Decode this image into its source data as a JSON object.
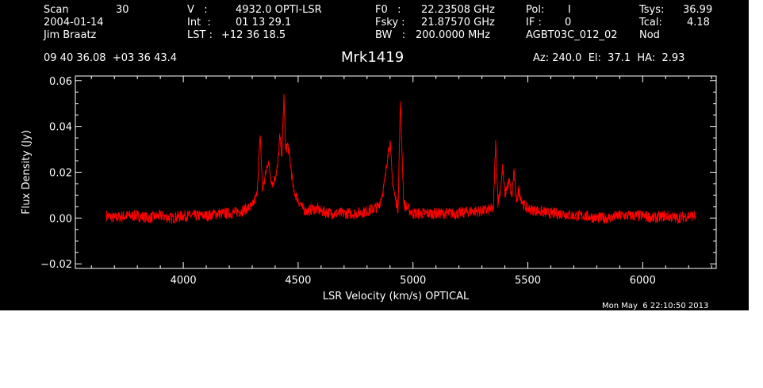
{
  "header": {
    "scan_label": "Scan",
    "scan_value": "30",
    "date": "2004-01-14",
    "observer": "Jim Braatz",
    "v_label": "V   :",
    "v_value": "4932.0 OPTI-LSR",
    "int_label": "Int  :",
    "int_value": "01 13 29.1",
    "lst_label": "LST :",
    "lst_value": "+12 36 18.5",
    "f0_label": "F0   :",
    "f0_value": "22.23508 GHz",
    "fsky_label": "Fsky :",
    "fsky_value": "21.87570 GHz",
    "bw_label": "BW   :",
    "bw_value": "200.0000 MHz",
    "pol_label": "Pol:",
    "pol_value": "I",
    "if_label": "IF :",
    "if_value": "0",
    "project": "AGBT03C_012_02",
    "tsys_label": "Tsys:",
    "tsys_value": "36.99",
    "tcal_label": "Tcal:",
    "tcal_value": "4.18",
    "mode": "Nod",
    "coords": "09 40 36.08  +03 36 43.4",
    "source": "Mrk1419",
    "pointing": "Az: 240.0  El:  37.1  HA:  2.93"
  },
  "timestamp": "Mon May  6 22:10:50 2013",
  "colors": {
    "background": "#000000",
    "axes": "#ffffff",
    "trace": "#ff0000",
    "page": "#ffffff"
  },
  "chart_data": {
    "type": "line",
    "title": "Mrk1419",
    "xlabel": "LSR Velocity (km/s) OPTICAL",
    "ylabel": "Flux Density (Jy)",
    "xlim": [
      3530,
      6320
    ],
    "ylim": [
      -0.022,
      0.062
    ],
    "x_ticks": [
      4000,
      4500,
      5000,
      5500,
      6000
    ],
    "x_tick_labels": [
      "4000",
      "4500",
      "5000",
      "5500",
      "6000"
    ],
    "y_ticks": [
      -0.02,
      0.0,
      0.02,
      0.04,
      0.06
    ],
    "y_tick_labels": [
      "−0.02",
      "0.00",
      "0.02",
      "0.04",
      "0.06"
    ],
    "grid": false,
    "series": [
      {
        "x": [
          3665,
          3700,
          3750,
          3800,
          3850,
          3900,
          3950,
          4000,
          4050,
          4100,
          4150,
          4200,
          4250,
          4300,
          4320,
          4335,
          4345,
          4360,
          4370,
          4380,
          4390,
          4400,
          4410,
          4420,
          4430,
          4438,
          4445,
          4455,
          4465,
          4480,
          4500,
          4520,
          4540,
          4560,
          4580,
          4600,
          4650,
          4700,
          4750,
          4800,
          4850,
          4870,
          4880,
          4890,
          4900,
          4910,
          4920,
          4935,
          4945,
          4960,
          5000,
          5050,
          5100,
          5150,
          5200,
          5250,
          5300,
          5350,
          5360,
          5370,
          5380,
          5390,
          5400,
          5410,
          5420,
          5430,
          5440,
          5450,
          5460,
          5480,
          5500,
          5550,
          5600,
          5650,
          5700,
          5750,
          5800,
          5850,
          5900,
          5950,
          6000,
          6050,
          6100,
          6150,
          6200,
          6230
        ],
        "y": [
          0.001,
          0.0,
          0.001,
          0.001,
          0.0,
          0.001,
          0.0,
          0.001,
          0.001,
          0.001,
          0.002,
          0.002,
          0.003,
          0.005,
          0.01,
          0.036,
          0.012,
          0.02,
          0.025,
          0.018,
          0.015,
          0.018,
          0.022,
          0.035,
          0.028,
          0.054,
          0.03,
          0.032,
          0.025,
          0.012,
          0.008,
          0.004,
          0.003,
          0.004,
          0.004,
          0.003,
          0.002,
          0.002,
          0.002,
          0.003,
          0.005,
          0.012,
          0.018,
          0.028,
          0.033,
          0.017,
          0.01,
          0.004,
          0.051,
          0.006,
          0.002,
          0.002,
          0.002,
          0.002,
          0.002,
          0.003,
          0.003,
          0.004,
          0.033,
          0.007,
          0.012,
          0.022,
          0.01,
          0.014,
          0.016,
          0.009,
          0.021,
          0.007,
          0.012,
          0.006,
          0.004,
          0.003,
          0.002,
          0.002,
          0.001,
          0.001,
          0.0,
          0.0,
          0.001,
          0.001,
          0.001,
          0.0,
          0.001,
          0.0,
          0.001,
          0.001
        ]
      }
    ]
  }
}
